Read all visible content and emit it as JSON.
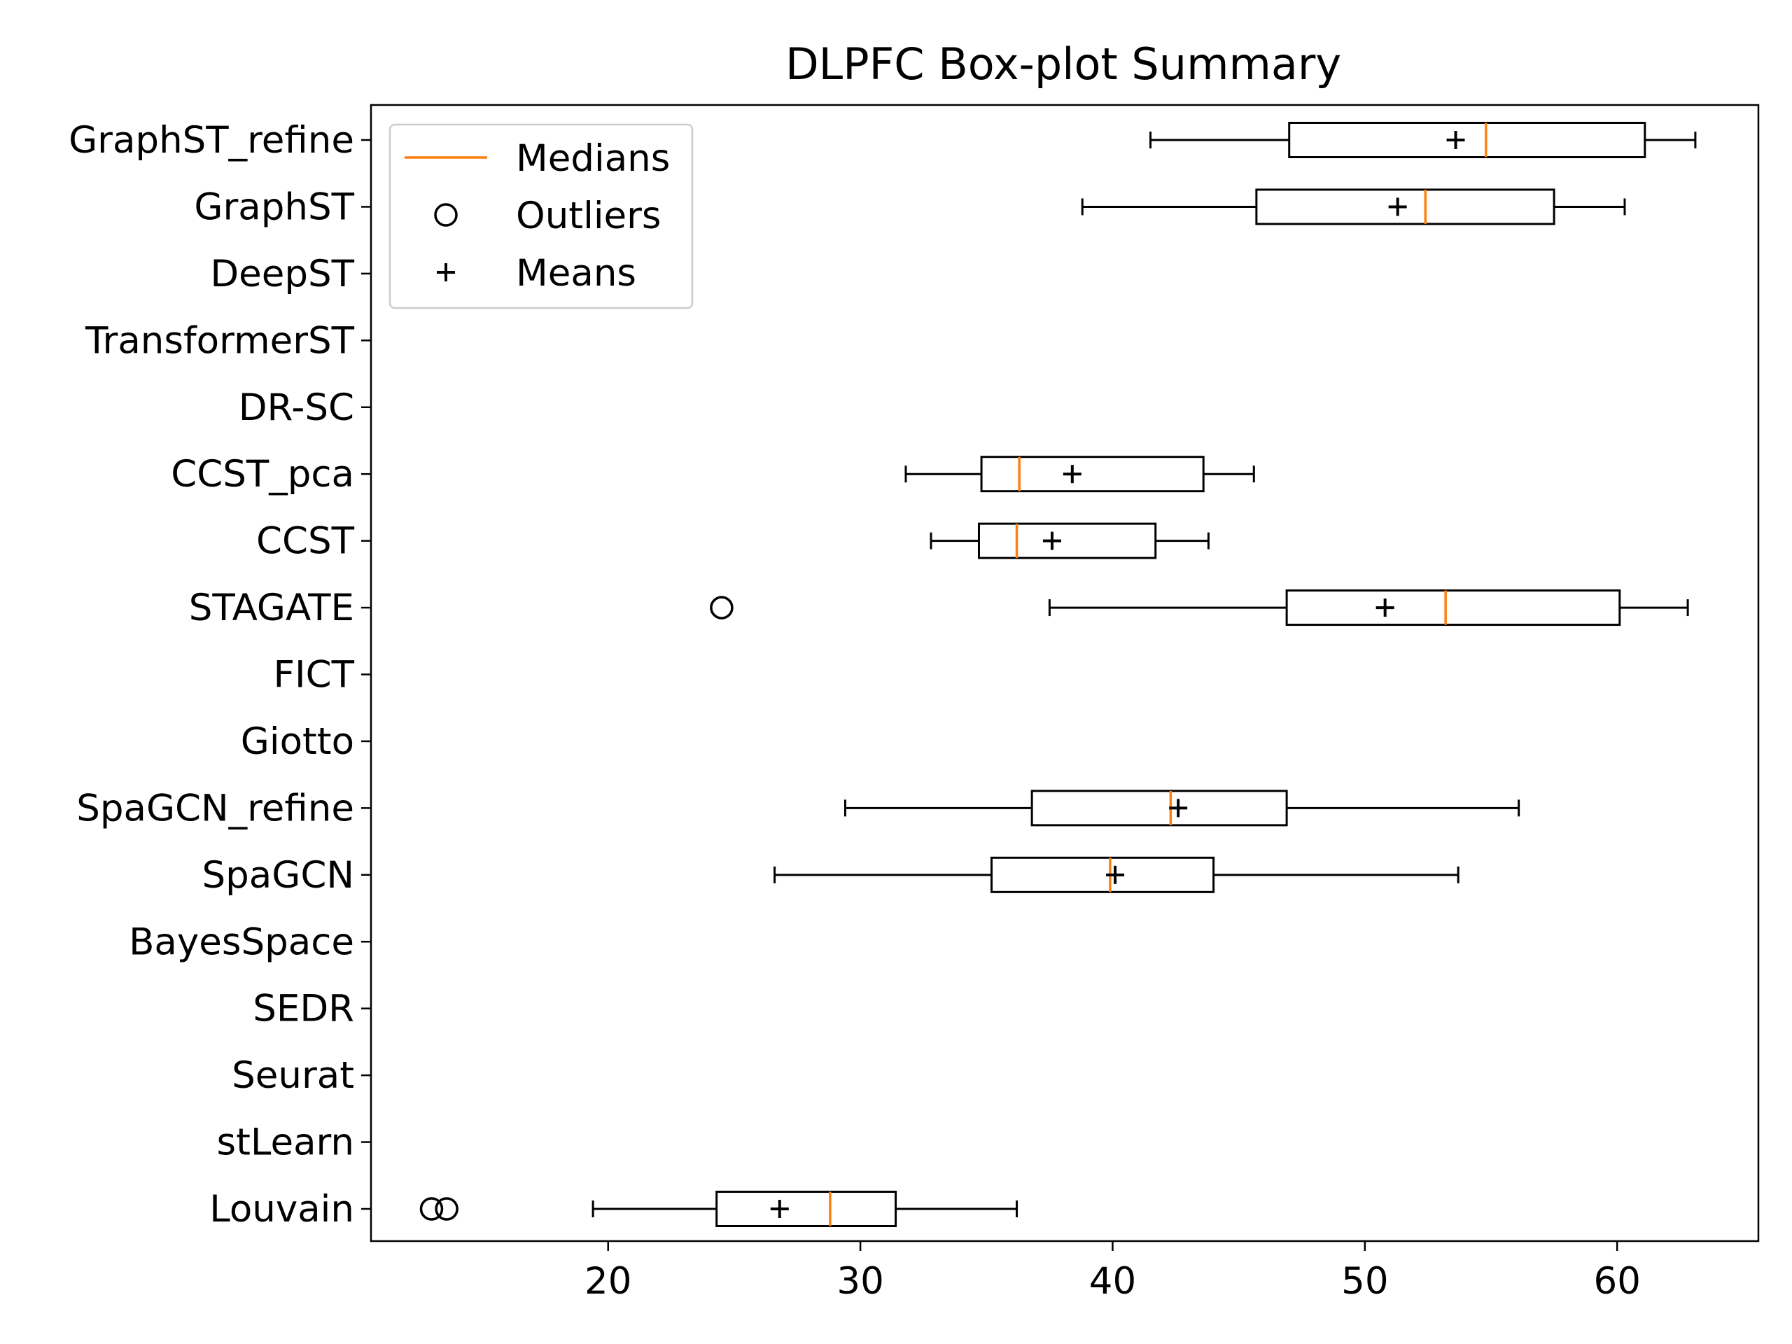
{
  "chart_data": {
    "type": "boxplot",
    "orientation": "horizontal",
    "title": "DLPFC Box-plot Summary",
    "xlabel": "",
    "ylabel": "",
    "xlim": [
      10.6,
      65.6
    ],
    "xticks": [
      20,
      30,
      40,
      50,
      60
    ],
    "grid": false,
    "legend": {
      "placement": "top-left",
      "entries": [
        {
          "label": "Medians",
          "marker": "line",
          "color": "#ff7f0e"
        },
        {
          "label": "Outliers",
          "marker": "circle",
          "color": "#000000"
        },
        {
          "label": "Means",
          "marker": "plus",
          "color": "#000000"
        }
      ]
    },
    "colors": {
      "median": "#ff7f0e",
      "box": "#000000",
      "whisker": "#000000"
    },
    "categories": [
      "GraphST_refine",
      "GraphST",
      "DeepST",
      "TransformerST",
      "DR-SC",
      "CCST_pca",
      "CCST",
      "STAGATE",
      "FICT",
      "Giotto",
      "SpaGCN_refine",
      "SpaGCN",
      "BayesSpace",
      "SEDR",
      "Seurat",
      "stLearn",
      "Louvain"
    ],
    "boxes": [
      {
        "name": "GraphST_refine",
        "whisker_low": 41.5,
        "q1": 47.0,
        "median": 54.8,
        "q3": 61.1,
        "whisker_high": 63.1,
        "mean": 53.6,
        "outliers": []
      },
      {
        "name": "GraphST",
        "whisker_low": 38.8,
        "q1": 45.7,
        "median": 52.4,
        "q3": 57.5,
        "whisker_high": 60.3,
        "mean": 51.3,
        "outliers": []
      },
      {
        "name": "DeepST",
        "empty": true
      },
      {
        "name": "TransformerST",
        "empty": true
      },
      {
        "name": "DR-SC",
        "empty": true
      },
      {
        "name": "CCST_pca",
        "whisker_low": 31.8,
        "q1": 34.8,
        "median": 36.3,
        "q3": 43.6,
        "whisker_high": 45.6,
        "mean": 38.4,
        "outliers": []
      },
      {
        "name": "CCST",
        "whisker_low": 32.8,
        "q1": 34.7,
        "median": 36.2,
        "q3": 41.7,
        "whisker_high": 43.8,
        "mean": 37.6,
        "outliers": []
      },
      {
        "name": "STAGATE",
        "whisker_low": 37.5,
        "q1": 46.9,
        "median": 53.2,
        "q3": 60.1,
        "whisker_high": 62.8,
        "mean": 50.8,
        "outliers": [
          24.5
        ]
      },
      {
        "name": "FICT",
        "empty": true
      },
      {
        "name": "Giotto",
        "empty": true
      },
      {
        "name": "SpaGCN_refine",
        "whisker_low": 29.4,
        "q1": 36.8,
        "median": 42.3,
        "q3": 46.9,
        "whisker_high": 56.1,
        "mean": 42.6,
        "outliers": []
      },
      {
        "name": "SpaGCN",
        "whisker_low": 26.6,
        "q1": 35.2,
        "median": 39.9,
        "q3": 44.0,
        "whisker_high": 53.7,
        "mean": 40.1,
        "outliers": []
      },
      {
        "name": "BayesSpace",
        "empty": true
      },
      {
        "name": "SEDR",
        "empty": true
      },
      {
        "name": "Seurat",
        "empty": true
      },
      {
        "name": "stLearn",
        "empty": true
      },
      {
        "name": "Louvain",
        "whisker_low": 19.4,
        "q1": 24.3,
        "median": 28.8,
        "q3": 31.4,
        "whisker_high": 36.2,
        "mean": 26.8,
        "outliers": [
          13.0,
          13.6
        ]
      }
    ]
  }
}
